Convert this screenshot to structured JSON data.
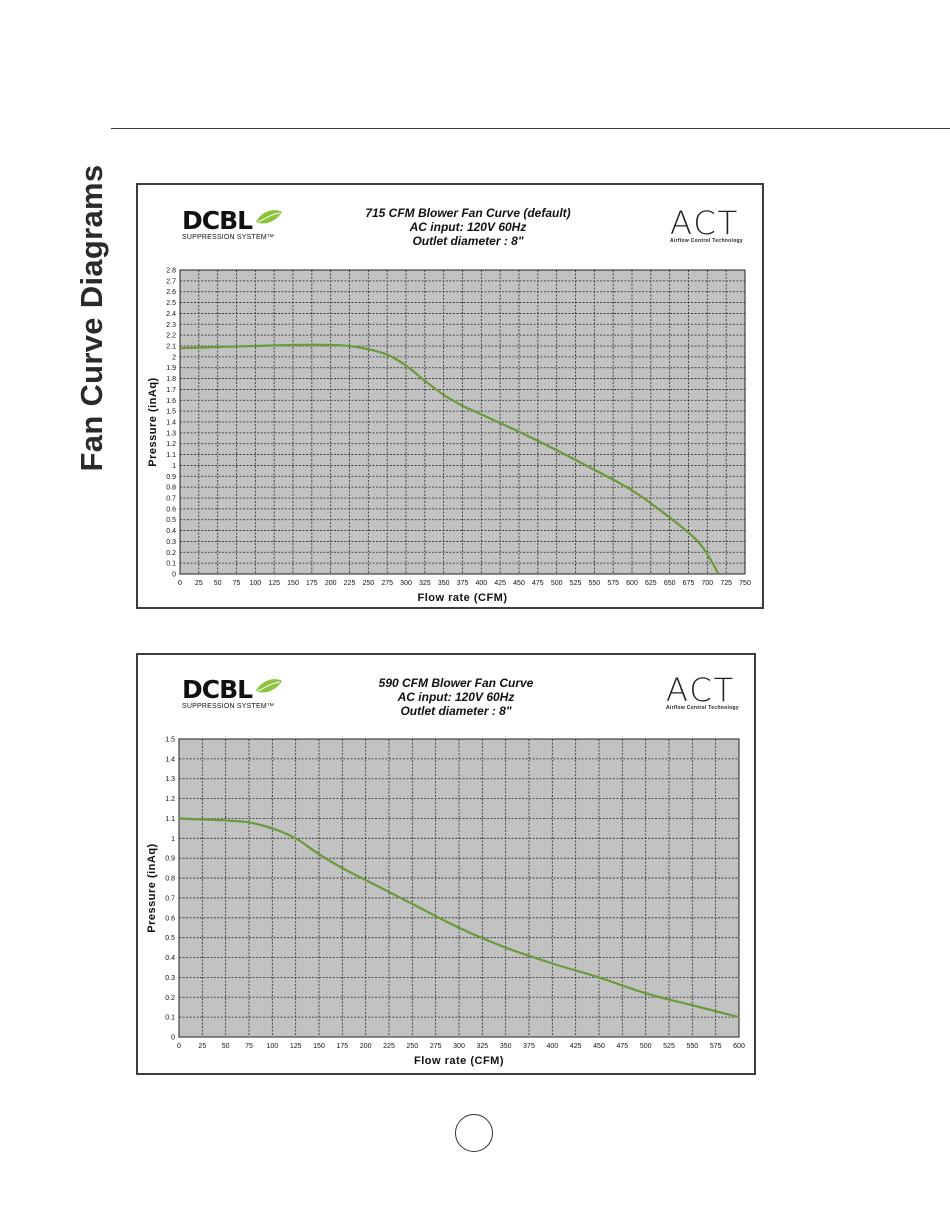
{
  "page": {
    "side_title": "Fan Curve Diagrams"
  },
  "logos": {
    "dcbl_wordmark": "DCBL",
    "dcbl_tagline": "SUPPRESSION SYSTEM™",
    "act_wordmark": "ACT",
    "act_tagline": "Airflow Control Technology"
  },
  "colors": {
    "curve": "#6a9a3c",
    "plot_bg": "#c2c2c2",
    "grid": "#2a2a2a",
    "leaf": "#8cc43f"
  },
  "chart_data": [
    {
      "type": "line",
      "title": "715 CFM Blower Fan Curve (default)",
      "subtitle_lines": [
        "AC input: 120V  60Hz",
        "Outlet diameter : 8\""
      ],
      "xlabel": "Flow rate (CFM)",
      "ylabel": "Pressure (inAq)",
      "xlim": [
        0,
        750
      ],
      "ylim": [
        0,
        2.8
      ],
      "xticks": [
        0,
        25,
        50,
        75,
        100,
        125,
        150,
        175,
        200,
        225,
        250,
        275,
        300,
        325,
        350,
        375,
        400,
        425,
        450,
        475,
        500,
        525,
        550,
        575,
        600,
        625,
        650,
        675,
        700,
        725,
        750
      ],
      "yticks": [
        0,
        0.1,
        0.2,
        0.3,
        0.4,
        0.5,
        0.6,
        0.7,
        0.8,
        0.9,
        1,
        1.1,
        1.2,
        1.3,
        1.4,
        1.5,
        1.6,
        1.7,
        1.8,
        1.9,
        2,
        2.1,
        2.2,
        2.3,
        2.4,
        2.5,
        2.6,
        2.7,
        2.8
      ],
      "grid": true,
      "series": [
        {
          "x": [
            0,
            50,
            100,
            150,
            200,
            225,
            250,
            275,
            300,
            325,
            350,
            375,
            400,
            450,
            500,
            550,
            600,
            650,
            690,
            715
          ],
          "y": [
            2.08,
            2.09,
            2.1,
            2.11,
            2.11,
            2.1,
            2.07,
            2.02,
            1.92,
            1.78,
            1.65,
            1.55,
            1.47,
            1.31,
            1.14,
            0.96,
            0.77,
            0.52,
            0.28,
            0.0
          ]
        }
      ]
    },
    {
      "type": "line",
      "title": "590 CFM Blower Fan Curve",
      "subtitle_lines": [
        "AC input: 120V  60Hz",
        "Outlet diameter : 8\""
      ],
      "xlabel": "Flow rate (CFM)",
      "ylabel": "Pressure (inAq)",
      "xlim": [
        0,
        600
      ],
      "ylim": [
        0,
        1.5
      ],
      "xticks": [
        0,
        25,
        50,
        75,
        100,
        125,
        150,
        175,
        200,
        225,
        250,
        275,
        300,
        325,
        350,
        375,
        400,
        425,
        450,
        475,
        500,
        525,
        550,
        575,
        600
      ],
      "yticks": [
        0,
        0.1,
        0.2,
        0.3,
        0.4,
        0.5,
        0.6,
        0.7,
        0.8,
        0.9,
        1,
        1.1,
        1.2,
        1.3,
        1.4,
        1.5
      ],
      "grid": true,
      "series": [
        {
          "x": [
            0,
            25,
            50,
            75,
            100,
            125,
            150,
            175,
            200,
            250,
            300,
            350,
            400,
            450,
            500,
            550,
            600
          ],
          "y": [
            1.1,
            1.095,
            1.09,
            1.08,
            1.05,
            1.0,
            0.92,
            0.85,
            0.79,
            0.67,
            0.55,
            0.45,
            0.37,
            0.3,
            0.22,
            0.16,
            0.1
          ]
        }
      ]
    }
  ]
}
